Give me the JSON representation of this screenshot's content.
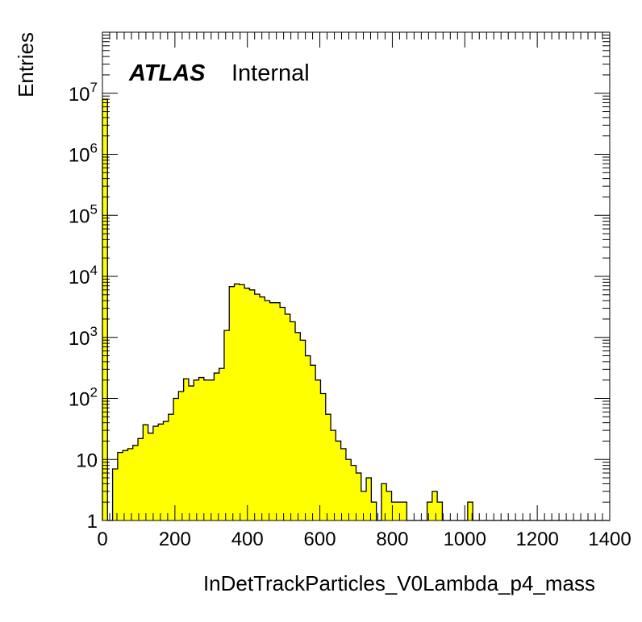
{
  "chart_data": {
    "type": "bar",
    "histogram": true,
    "xlabel": "InDetTrackParticles_V0Lambda_p4_mass",
    "ylabel": "Entries",
    "xlim": [
      0,
      1400
    ],
    "ylim": [
      1,
      100000000
    ],
    "yscale": "log",
    "bin_width": 14,
    "fill_color": "#ffff00",
    "line_color": "#000000",
    "x_ticks": [
      0,
      200,
      400,
      600,
      800,
      1000,
      1200,
      1400
    ],
    "x_tick_labels": [
      "0",
      "200",
      "400",
      "600",
      "800",
      "1000",
      "1200",
      "1400"
    ],
    "y_ticks": [
      {
        "value": 1,
        "base": "1",
        "exp": ""
      },
      {
        "value": 10,
        "base": "10",
        "exp": ""
      },
      {
        "value": 100,
        "base": "10",
        "exp": "2"
      },
      {
        "value": 1000,
        "base": "10",
        "exp": "3"
      },
      {
        "value": 10000,
        "base": "10",
        "exp": "4"
      },
      {
        "value": 100000,
        "base": "10",
        "exp": "5"
      },
      {
        "value": 1000000,
        "base": "10",
        "exp": "6"
      },
      {
        "value": 10000000,
        "base": "10",
        "exp": "7"
      }
    ],
    "bin_edges": [
      0,
      14,
      28,
      42,
      56,
      70,
      84,
      98,
      112,
      126,
      140,
      154,
      168,
      182,
      196,
      210,
      224,
      238,
      252,
      266,
      280,
      294,
      308,
      322,
      336,
      350,
      364,
      378,
      392,
      406,
      420,
      434,
      448,
      462,
      476,
      490,
      504,
      518,
      532,
      546,
      560,
      574,
      588,
      602,
      616,
      630,
      644,
      658,
      672,
      686,
      700,
      714,
      728,
      742,
      756,
      770,
      784,
      798,
      812,
      826,
      840,
      854,
      868,
      882,
      896,
      910,
      924,
      938,
      952,
      966,
      980,
      994,
      1008,
      1022,
      1036,
      1400
    ],
    "values": [
      8000000,
      1,
      7,
      13,
      14,
      15,
      17,
      22,
      37,
      27,
      35,
      38,
      42,
      55,
      100,
      130,
      210,
      160,
      200,
      220,
      200,
      200,
      260,
      310,
      1300,
      6800,
      7500,
      7300,
      6400,
      6000,
      5100,
      4600,
      4000,
      3700,
      3700,
      3100,
      2400,
      1800,
      1200,
      900,
      500,
      350,
      200,
      120,
      55,
      30,
      20,
      15,
      10,
      8,
      6,
      3,
      5,
      2,
      1,
      4,
      3,
      2,
      2,
      2,
      1,
      1,
      0,
      1,
      2,
      3,
      2,
      1,
      1,
      1,
      0,
      0,
      2,
      1,
      0
    ]
  },
  "annotation": {
    "atlas": "ATLAS",
    "status": "Internal"
  }
}
